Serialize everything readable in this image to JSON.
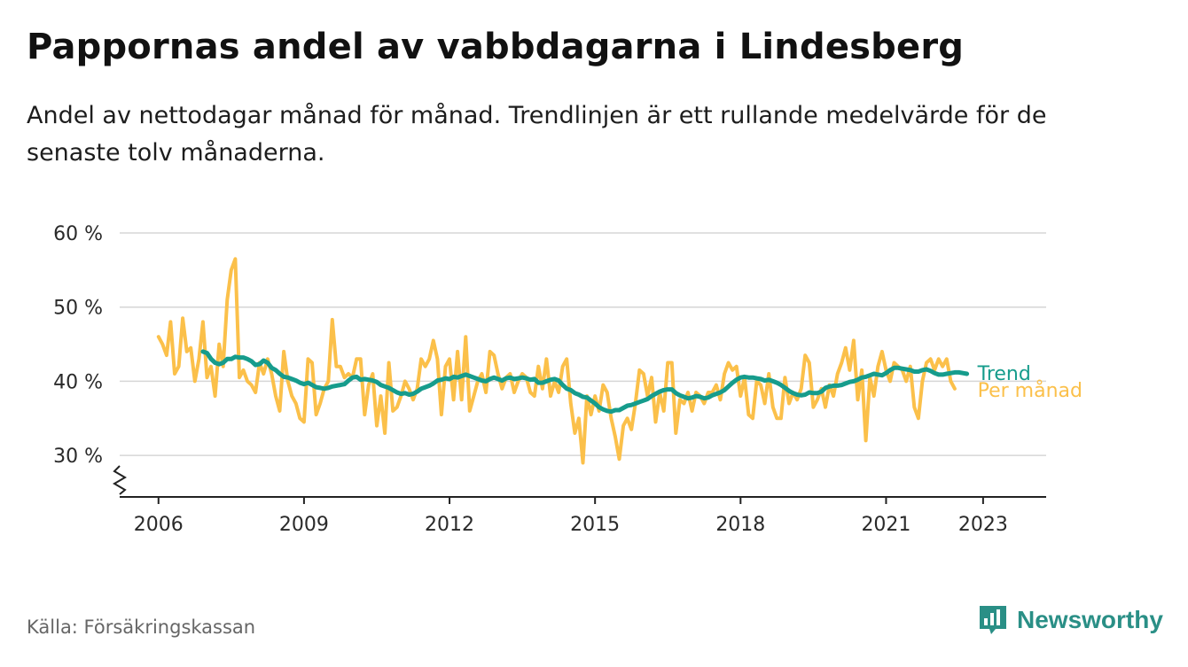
{
  "header": {
    "title": "Pappornas andel av vabbdagarna i Lindesberg",
    "subtitle": "Andel av nettodagar månad för månad. Trendlinjen är ett rullande medelvärde för de senaste tolv månaderna."
  },
  "footer": {
    "source": "Källa: Försäkringskassan",
    "brand": "Newsworthy",
    "brand_icon": "bar-chart-speech-bubble-icon"
  },
  "colors": {
    "monthly": "#fbc04a",
    "trend": "#169c8c",
    "grid": "#d6d6d6",
    "axis": "#222222",
    "brand": "#2a8f86"
  },
  "chart_data": {
    "type": "line",
    "title": "Pappornas andel av vabbdagarna i Lindesberg",
    "subtitle": "Andel av nettodagar månad för månad. Trendlinjen är ett rullande medelvärde för de senaste tolv månaderna.",
    "x_unit": "year",
    "xlim": [
      2005.2,
      2024.3
    ],
    "ylim": [
      25,
      60
    ],
    "y_ticks": [
      30,
      40,
      50,
      60
    ],
    "y_tick_labels": [
      "30 %",
      "40 %",
      "50 %",
      "60 %"
    ],
    "x_ticks": [
      2006,
      2009,
      2012,
      2015,
      2018,
      2021,
      2023
    ],
    "x_tick_labels": [
      "2006",
      "2009",
      "2012",
      "2015",
      "2018",
      "2021",
      "2023"
    ],
    "grid": "horizontal",
    "y_axis_break": true,
    "series": [
      {
        "name": "Per månad",
        "color": "#fbc04a",
        "x_start": 2006.0,
        "x_step": 0.08333,
        "values": [
          46,
          45,
          43.5,
          48,
          41,
          42,
          48.5,
          44,
          44.5,
          40,
          43,
          48,
          40.5,
          42,
          38,
          45,
          42,
          51,
          55,
          56.5,
          40.5,
          41.5,
          40,
          39.5,
          38.5,
          42.5,
          41,
          43,
          41,
          38,
          36,
          44,
          40,
          38,
          37,
          35,
          34.5,
          43,
          42.5,
          35.5,
          37,
          39,
          40,
          48.3,
          42,
          42,
          40.5,
          41,
          40.5,
          43,
          43,
          35.5,
          39.5,
          41,
          34,
          38,
          33,
          42.5,
          36,
          36.5,
          38,
          40,
          39,
          37.5,
          39,
          43,
          42,
          43,
          45.5,
          43,
          35.5,
          42,
          43,
          37.5,
          44,
          37.5,
          46,
          36,
          38,
          40,
          41,
          38.5,
          44,
          43.5,
          41,
          39,
          40.5,
          41,
          38.5,
          40,
          41,
          40.5,
          38.5,
          38,
          42,
          39,
          43,
          38,
          40,
          38.5,
          42,
          43,
          37,
          33,
          35,
          29,
          38,
          35.5,
          38,
          36,
          39.5,
          38.5,
          35,
          32.5,
          29.5,
          34,
          35,
          33.5,
          37,
          41.5,
          41,
          38,
          40.5,
          34.5,
          38.5,
          36,
          42.5,
          42.5,
          33,
          37.5,
          37,
          38.5,
          36,
          38.5,
          38,
          37,
          38.5,
          38.5,
          39.5,
          37.5,
          41,
          42.5,
          41.5,
          42,
          38,
          40.5,
          35.5,
          35,
          40,
          39.5,
          37,
          41,
          36.5,
          35,
          35,
          40.5,
          37,
          38.5,
          37.5,
          39,
          43.5,
          42.5,
          36.5,
          37.5,
          39,
          36.5,
          39.5,
          38,
          41,
          42.5,
          44.5,
          41.5,
          45.5,
          37.5,
          41.5,
          32,
          40.5,
          38,
          42,
          44,
          41.5,
          40,
          42.5,
          42,
          41.5,
          40,
          42,
          36.5,
          35,
          40,
          42.5,
          43,
          41.5,
          43,
          42,
          43,
          40,
          39
        ]
      },
      {
        "name": "Trend",
        "color": "#169c8c",
        "x_start": 2006.917,
        "x_step": 0.08333,
        "values": [
          44,
          43.8,
          43,
          42.5,
          42.3,
          42.5,
          43,
          43,
          43.3,
          43.2,
          43.2,
          43,
          42.7,
          42.2,
          42.3,
          42.8,
          42.5,
          41.8,
          41.5,
          41,
          40.6,
          40.5,
          40.3,
          40.1,
          39.8,
          39.6,
          39.8,
          39.5,
          39.2,
          39.1,
          39,
          39.1,
          39.3,
          39.4,
          39.5,
          39.6,
          40.1,
          40.5,
          40.6,
          40.2,
          40.3,
          40.2,
          40.1,
          39.9,
          39.5,
          39.3,
          39.1,
          38.8,
          38.5,
          38.3,
          38.4,
          38.2,
          38.3,
          38.6,
          39,
          39.2,
          39.4,
          39.7,
          40.1,
          40.2,
          40.4,
          40.3,
          40.6,
          40.5,
          40.7,
          40.9,
          40.7,
          40.5,
          40.3,
          40.1,
          40,
          40.3,
          40.5,
          40.3,
          40.1,
          40.4,
          40.5,
          40.3,
          40.4,
          40.5,
          40.4,
          40.2,
          40.3,
          39.8,
          39.8,
          40,
          40.2,
          40.3,
          40.1,
          39.5,
          39,
          38.8,
          38.4,
          38.2,
          37.9,
          37.8,
          37.4,
          37,
          36.5,
          36.2,
          36,
          35.9,
          36.1,
          36.1,
          36.4,
          36.7,
          36.8,
          37,
          37.2,
          37.4,
          37.6,
          38,
          38.3,
          38.6,
          38.8,
          38.9,
          38.9,
          38.4,
          38.1,
          37.9,
          37.7,
          37.8,
          38,
          37.9,
          37.7,
          37.8,
          38.1,
          38.3,
          38.5,
          38.8,
          39.3,
          39.8,
          40.2,
          40.5,
          40.6,
          40.5,
          40.5,
          40.4,
          40.3,
          40.1,
          40.2,
          40,
          39.8,
          39.5,
          39.1,
          38.7,
          38.4,
          38.2,
          38.1,
          38.2,
          38.5,
          38.4,
          38.4,
          38.6,
          39.1,
          39.3,
          39.4,
          39.4,
          39.5,
          39.7,
          39.9,
          40,
          40.2,
          40.5,
          40.6,
          40.8,
          41,
          40.9,
          40.8,
          41.1,
          41.5,
          41.8,
          41.8,
          41.7,
          41.6,
          41.5,
          41.3,
          41.3,
          41.5,
          41.6,
          41.4,
          41.1,
          40.9,
          40.9,
          41,
          41.1,
          41.2,
          41.2,
          41.1,
          41
        ]
      }
    ],
    "legend": "inline-right"
  }
}
